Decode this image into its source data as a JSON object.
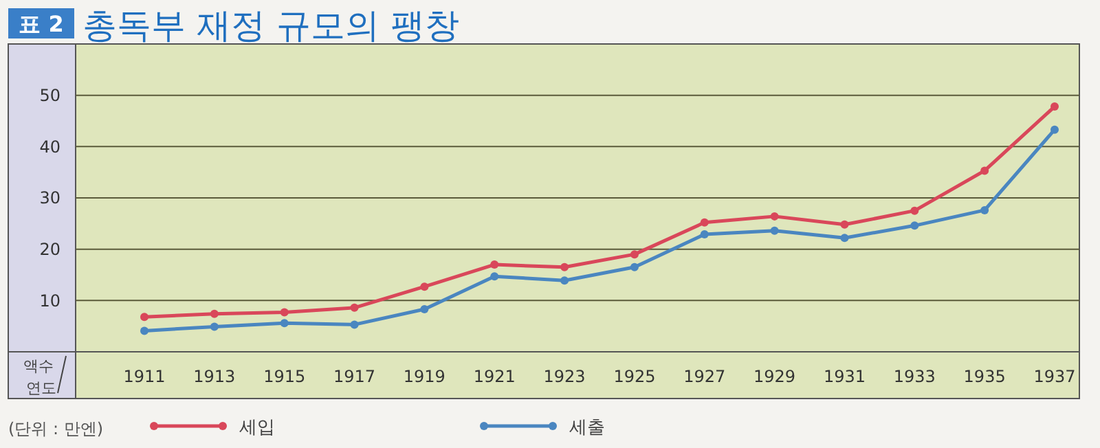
{
  "chart_data": {
    "type": "line",
    "title": "총독부 재정 규모의 팽창",
    "ylabel": "액수",
    "xlabel": "연도",
    "annotations": [
      "표 2",
      "(단위 : 만엔)"
    ],
    "categories": [
      "1911",
      "1913",
      "1915",
      "1917",
      "1919",
      "1921",
      "1923",
      "1925",
      "1927",
      "1929",
      "1931",
      "1933",
      "1935",
      "1937"
    ],
    "series": [
      {
        "name": "세입",
        "color": "#d9475a",
        "values": [
          6.8,
          7.4,
          7.7,
          8.6,
          12.7,
          17,
          16.5,
          19,
          25.2,
          26.4,
          24.8,
          27.5,
          35.3,
          47.8
        ]
      },
      {
        "name": "세출",
        "color": "#4a86c0",
        "values": [
          4.1,
          4.9,
          5.6,
          5.3,
          8.3,
          14.7,
          13.9,
          16.5,
          22.9,
          23.6,
          22.2,
          24.6,
          27.6,
          43.3
        ]
      }
    ],
    "ylim": [
      0,
      60
    ],
    "yticks": [
      10,
      20,
      30,
      40,
      50
    ],
    "grid": "y",
    "legend": "bottom left",
    "marker": "circle",
    "line_style": "solid"
  }
}
